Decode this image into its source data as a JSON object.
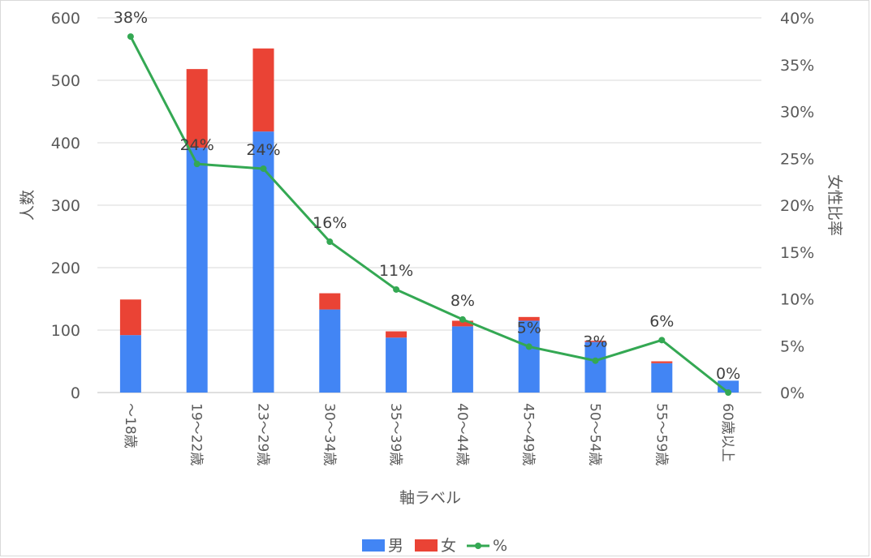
{
  "chart_data": {
    "type": "bar",
    "stacked": true,
    "categories": [
      "～18歳",
      "19～22歳",
      "23～29歳",
      "30～34歳",
      "35～39歳",
      "40～44歳",
      "45～49歳",
      "50～54歳",
      "55～59歳",
      "60歳以上"
    ],
    "series": [
      {
        "name": "男",
        "type": "bar",
        "axis": "left",
        "color": "#4285f4",
        "values": [
          92,
          392,
          418,
          133,
          88,
          106,
          115,
          81,
          47,
          19
        ]
      },
      {
        "name": "女",
        "type": "bar",
        "axis": "left",
        "color": "#ea4335",
        "values": [
          57,
          126,
          133,
          26,
          10,
          9,
          6,
          2,
          3,
          0
        ]
      },
      {
        "name": "%",
        "type": "line",
        "axis": "right",
        "color": "#34a853",
        "values": [
          0.38,
          0.244,
          0.239,
          0.161,
          0.11,
          0.078,
          0.049,
          0.034,
          0.056,
          0.0
        ]
      }
    ],
    "point_labels": [
      "38%",
      "24%",
      "24%",
      "16%",
      "11%",
      "8%",
      "5%",
      "3%",
      "6%",
      "0%"
    ],
    "xlabel": "軸ラベル",
    "ylabel": "人数",
    "y2label": "女性比率",
    "ylim": [
      0,
      600
    ],
    "yticks": [
      "0",
      "100",
      "200",
      "300",
      "400",
      "500",
      "600"
    ],
    "y2lim": [
      0,
      0.4
    ],
    "y2ticks": [
      "0%",
      "5%",
      "10%",
      "15%",
      "20%",
      "25%",
      "30%",
      "35%",
      "40%"
    ],
    "grid": true,
    "legend": "bottom",
    "legend_items": [
      "男",
      "女",
      "%"
    ]
  }
}
